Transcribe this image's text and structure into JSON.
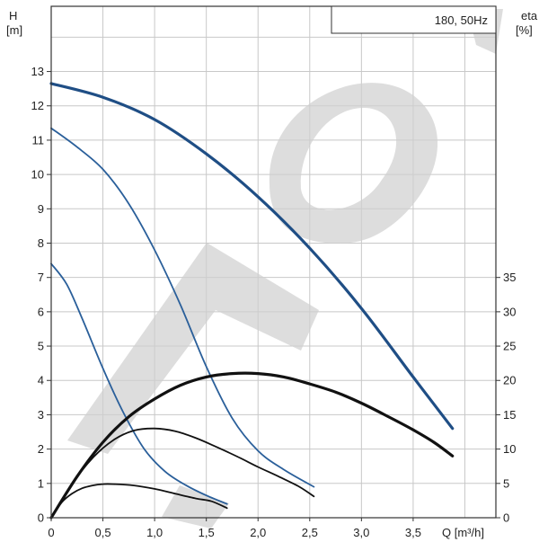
{
  "chart_data": {
    "type": "line",
    "legend_box": "180, 50Hz",
    "watermark": "WILO",
    "left_axis": {
      "label_top": "H",
      "label_unit": "[m]",
      "range": [
        0,
        14.9
      ],
      "ticks": [
        "0",
        "1",
        "2",
        "3",
        "4",
        "5",
        "6",
        "7",
        "8",
        "9",
        "10",
        "11",
        "12",
        "13"
      ],
      "tick_values": [
        0,
        1,
        2,
        3,
        4,
        5,
        6,
        7,
        8,
        9,
        10,
        11,
        12,
        13
      ]
    },
    "right_axis": {
      "label_top": "eta",
      "label_unit": "[%]",
      "range": [
        0,
        74.5
      ],
      "ticks": [
        "0",
        "5",
        "10",
        "15",
        "20",
        "25",
        "30",
        "35"
      ],
      "tick_values": [
        0,
        5,
        10,
        15,
        20,
        25,
        30,
        35
      ]
    },
    "x_axis": {
      "label": "Q [m³/h]",
      "range": [
        0,
        4.3
      ],
      "ticks": [
        "0",
        "0,5",
        "1,0",
        "1,5",
        "2,0",
        "2,5",
        "3,0",
        "3,5"
      ],
      "tick_values": [
        0,
        0.5,
        1.0,
        1.5,
        2.0,
        2.5,
        3.0,
        3.5
      ]
    },
    "grid": true,
    "series": [
      {
        "axis": "left",
        "color": "#1f4e85",
        "width": 3.2,
        "points": [
          [
            0,
            12.65
          ],
          [
            0.5,
            12.25
          ],
          [
            1.0,
            11.6
          ],
          [
            1.5,
            10.6
          ],
          [
            2.0,
            9.35
          ],
          [
            2.5,
            7.85
          ],
          [
            3.0,
            6.1
          ],
          [
            3.5,
            4.1
          ],
          [
            3.88,
            2.6
          ]
        ]
      },
      {
        "axis": "left",
        "color": "#2a5f9a",
        "width": 1.8,
        "points": [
          [
            0,
            11.35
          ],
          [
            0.25,
            10.8
          ],
          [
            0.5,
            10.15
          ],
          [
            0.75,
            9.15
          ],
          [
            1.0,
            7.8
          ],
          [
            1.25,
            6.2
          ],
          [
            1.5,
            4.4
          ],
          [
            1.75,
            2.9
          ],
          [
            2.0,
            1.95
          ],
          [
            2.25,
            1.4
          ],
          [
            2.54,
            0.9
          ]
        ]
      },
      {
        "axis": "left",
        "color": "#2a5f9a",
        "width": 1.8,
        "points": [
          [
            0,
            7.4
          ],
          [
            0.15,
            6.8
          ],
          [
            0.3,
            5.8
          ],
          [
            0.5,
            4.35
          ],
          [
            0.7,
            3.05
          ],
          [
            0.9,
            2.0
          ],
          [
            1.1,
            1.35
          ],
          [
            1.3,
            0.95
          ],
          [
            1.5,
            0.65
          ],
          [
            1.7,
            0.4
          ]
        ]
      },
      {
        "axis": "right",
        "color": "#111111",
        "width": 3.2,
        "points": [
          [
            0,
            0
          ],
          [
            0.25,
            6.0
          ],
          [
            0.5,
            11.0
          ],
          [
            0.75,
            14.7
          ],
          [
            1.0,
            17.3
          ],
          [
            1.25,
            19.3
          ],
          [
            1.5,
            20.5
          ],
          [
            1.75,
            21.0
          ],
          [
            2.0,
            21.0
          ],
          [
            2.25,
            20.5
          ],
          [
            2.5,
            19.5
          ],
          [
            2.75,
            18.3
          ],
          [
            3.0,
            16.7
          ],
          [
            3.25,
            14.8
          ],
          [
            3.5,
            12.8
          ],
          [
            3.7,
            11.0
          ],
          [
            3.88,
            9.0
          ]
        ]
      },
      {
        "axis": "right",
        "color": "#111111",
        "width": 1.8,
        "points": [
          [
            0,
            0
          ],
          [
            0.2,
            4.9
          ],
          [
            0.4,
            8.7
          ],
          [
            0.6,
            11.3
          ],
          [
            0.8,
            12.7
          ],
          [
            1.0,
            13.0
          ],
          [
            1.2,
            12.6
          ],
          [
            1.4,
            11.6
          ],
          [
            1.6,
            10.3
          ],
          [
            1.8,
            8.9
          ],
          [
            2.0,
            7.4
          ],
          [
            2.2,
            6.0
          ],
          [
            2.4,
            4.5
          ],
          [
            2.54,
            3.1
          ]
        ]
      },
      {
        "axis": "right",
        "color": "#111111",
        "width": 1.8,
        "points": [
          [
            0,
            0
          ],
          [
            0.1,
            2.2
          ],
          [
            0.2,
            3.5
          ],
          [
            0.3,
            4.3
          ],
          [
            0.4,
            4.7
          ],
          [
            0.5,
            4.9
          ],
          [
            0.6,
            4.9
          ],
          [
            0.8,
            4.7
          ],
          [
            1.0,
            4.2
          ],
          [
            1.2,
            3.5
          ],
          [
            1.4,
            2.8
          ],
          [
            1.55,
            2.4
          ],
          [
            1.7,
            1.4
          ]
        ]
      }
    ]
  }
}
